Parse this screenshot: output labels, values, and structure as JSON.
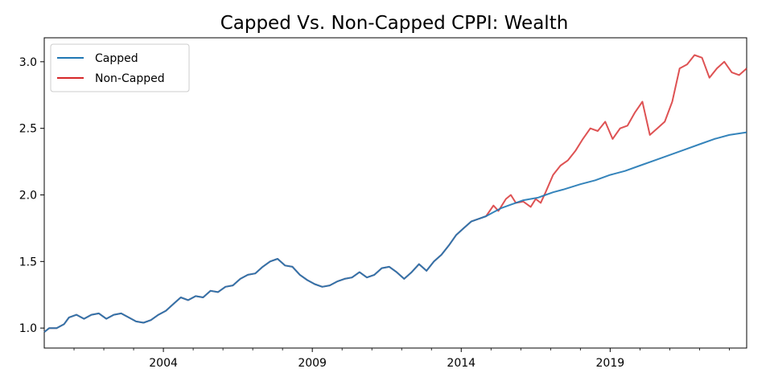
{
  "chart_data": {
    "type": "line",
    "title": "Capped Vs. Non-Capped CPPI: Wealth",
    "xlabel": "",
    "ylabel": "",
    "x_range": [
      "2000-01",
      "2023-08"
    ],
    "ylim": [
      0.85,
      3.18
    ],
    "x_ticks": [
      "2004",
      "2009",
      "2014",
      "2019"
    ],
    "y_ticks": [
      1.0,
      1.5,
      2.0,
      2.5,
      3.0
    ],
    "y_tick_labels": [
      "1.0",
      "1.5",
      "2.0",
      "2.5",
      "3.0"
    ],
    "grid": false,
    "legend": "top-left",
    "series": [
      {
        "name": "Capped",
        "color": "#1f77b4",
        "points": [
          [
            "2000-01",
            0.97
          ],
          [
            "2000-03",
            1.0
          ],
          [
            "2000-06",
            1.0
          ],
          [
            "2000-09",
            1.03
          ],
          [
            "2000-11",
            1.08
          ],
          [
            "2001-02",
            1.1
          ],
          [
            "2001-05",
            1.07
          ],
          [
            "2001-08",
            1.1
          ],
          [
            "2001-11",
            1.11
          ],
          [
            "2002-02",
            1.07
          ],
          [
            "2002-05",
            1.1
          ],
          [
            "2002-08",
            1.11
          ],
          [
            "2002-11",
            1.08
          ],
          [
            "2003-02",
            1.05
          ],
          [
            "2003-05",
            1.04
          ],
          [
            "2003-08",
            1.06
          ],
          [
            "2003-11",
            1.1
          ],
          [
            "2004-02",
            1.13
          ],
          [
            "2004-05",
            1.18
          ],
          [
            "2004-08",
            1.23
          ],
          [
            "2004-11",
            1.21
          ],
          [
            "2005-02",
            1.24
          ],
          [
            "2005-05",
            1.23
          ],
          [
            "2005-08",
            1.28
          ],
          [
            "2005-11",
            1.27
          ],
          [
            "2006-02",
            1.31
          ],
          [
            "2006-05",
            1.32
          ],
          [
            "2006-08",
            1.37
          ],
          [
            "2006-11",
            1.4
          ],
          [
            "2007-02",
            1.41
          ],
          [
            "2007-05",
            1.46
          ],
          [
            "2007-08",
            1.5
          ],
          [
            "2007-11",
            1.52
          ],
          [
            "2008-02",
            1.47
          ],
          [
            "2008-05",
            1.46
          ],
          [
            "2008-08",
            1.4
          ],
          [
            "2008-11",
            1.36
          ],
          [
            "2009-02",
            1.33
          ],
          [
            "2009-05",
            1.31
          ],
          [
            "2009-08",
            1.32
          ],
          [
            "2009-11",
            1.35
          ],
          [
            "2010-02",
            1.37
          ],
          [
            "2010-05",
            1.38
          ],
          [
            "2010-08",
            1.42
          ],
          [
            "2010-11",
            1.38
          ],
          [
            "2011-02",
            1.4
          ],
          [
            "2011-05",
            1.45
          ],
          [
            "2011-08",
            1.46
          ],
          [
            "2011-11",
            1.42
          ],
          [
            "2012-02",
            1.37
          ],
          [
            "2012-05",
            1.42
          ],
          [
            "2012-08",
            1.48
          ],
          [
            "2012-11",
            1.43
          ],
          [
            "2013-02",
            1.5
          ],
          [
            "2013-05",
            1.55
          ],
          [
            "2013-08",
            1.62
          ],
          [
            "2013-11",
            1.7
          ],
          [
            "2014-02",
            1.75
          ],
          [
            "2014-05",
            1.8
          ],
          [
            "2014-08",
            1.82
          ],
          [
            "2014-11",
            1.84
          ],
          [
            "2015-02",
            1.87
          ],
          [
            "2015-05",
            1.9
          ],
          [
            "2015-08",
            1.92
          ],
          [
            "2015-11",
            1.94
          ],
          [
            "2016-02",
            1.96
          ],
          [
            "2016-05",
            1.97
          ],
          [
            "2016-08",
            1.98
          ],
          [
            "2016-11",
            2.0
          ],
          [
            "2017-02",
            2.02
          ],
          [
            "2017-06",
            2.04
          ],
          [
            "2018-01",
            2.08
          ],
          [
            "2018-07",
            2.11
          ],
          [
            "2019-01",
            2.15
          ],
          [
            "2019-07",
            2.18
          ],
          [
            "2020-01",
            2.22
          ],
          [
            "2020-07",
            2.26
          ],
          [
            "2021-01",
            2.3
          ],
          [
            "2021-07",
            2.34
          ],
          [
            "2022-01",
            2.38
          ],
          [
            "2022-07",
            2.42
          ],
          [
            "2023-01",
            2.45
          ],
          [
            "2023-08",
            2.47
          ]
        ]
      },
      {
        "name": "Non-Capped",
        "color": "#d62728",
        "points": [
          [
            "2000-01",
            0.97
          ],
          [
            "2000-03",
            1.0
          ],
          [
            "2000-06",
            1.0
          ],
          [
            "2000-09",
            1.03
          ],
          [
            "2000-11",
            1.08
          ],
          [
            "2001-02",
            1.1
          ],
          [
            "2001-05",
            1.07
          ],
          [
            "2001-08",
            1.1
          ],
          [
            "2001-11",
            1.11
          ],
          [
            "2002-02",
            1.07
          ],
          [
            "2002-05",
            1.1
          ],
          [
            "2002-08",
            1.11
          ],
          [
            "2002-11",
            1.08
          ],
          [
            "2003-02",
            1.05
          ],
          [
            "2003-05",
            1.04
          ],
          [
            "2003-08",
            1.06
          ],
          [
            "2003-11",
            1.1
          ],
          [
            "2004-02",
            1.13
          ],
          [
            "2004-05",
            1.18
          ],
          [
            "2004-08",
            1.23
          ],
          [
            "2004-11",
            1.21
          ],
          [
            "2005-02",
            1.24
          ],
          [
            "2005-05",
            1.23
          ],
          [
            "2005-08",
            1.28
          ],
          [
            "2005-11",
            1.27
          ],
          [
            "2006-02",
            1.31
          ],
          [
            "2006-05",
            1.32
          ],
          [
            "2006-08",
            1.37
          ],
          [
            "2006-11",
            1.4
          ],
          [
            "2007-02",
            1.41
          ],
          [
            "2007-05",
            1.46
          ],
          [
            "2007-08",
            1.5
          ],
          [
            "2007-11",
            1.52
          ],
          [
            "2008-02",
            1.47
          ],
          [
            "2008-05",
            1.46
          ],
          [
            "2008-08",
            1.4
          ],
          [
            "2008-11",
            1.36
          ],
          [
            "2009-02",
            1.33
          ],
          [
            "2009-05",
            1.31
          ],
          [
            "2009-08",
            1.32
          ],
          [
            "2009-11",
            1.35
          ],
          [
            "2010-02",
            1.37
          ],
          [
            "2010-05",
            1.38
          ],
          [
            "2010-08",
            1.42
          ],
          [
            "2010-11",
            1.38
          ],
          [
            "2011-02",
            1.4
          ],
          [
            "2011-05",
            1.45
          ],
          [
            "2011-08",
            1.46
          ],
          [
            "2011-11",
            1.42
          ],
          [
            "2012-02",
            1.37
          ],
          [
            "2012-05",
            1.42
          ],
          [
            "2012-08",
            1.48
          ],
          [
            "2012-11",
            1.43
          ],
          [
            "2013-02",
            1.5
          ],
          [
            "2013-05",
            1.55
          ],
          [
            "2013-08",
            1.62
          ],
          [
            "2013-11",
            1.7
          ],
          [
            "2014-02",
            1.75
          ],
          [
            "2014-05",
            1.8
          ],
          [
            "2014-08",
            1.82
          ],
          [
            "2014-11",
            1.84
          ],
          [
            "2015-02",
            1.92
          ],
          [
            "2015-04",
            1.88
          ],
          [
            "2015-07",
            1.97
          ],
          [
            "2015-09",
            2.0
          ],
          [
            "2015-11",
            1.94
          ],
          [
            "2016-02",
            1.95
          ],
          [
            "2016-05",
            1.91
          ],
          [
            "2016-07",
            1.97
          ],
          [
            "2016-09",
            1.94
          ],
          [
            "2016-11",
            2.02
          ],
          [
            "2017-02",
            2.15
          ],
          [
            "2017-05",
            2.22
          ],
          [
            "2017-08",
            2.26
          ],
          [
            "2017-11",
            2.33
          ],
          [
            "2018-02",
            2.42
          ],
          [
            "2018-05",
            2.5
          ],
          [
            "2018-08",
            2.48
          ],
          [
            "2018-11",
            2.55
          ],
          [
            "2019-02",
            2.42
          ],
          [
            "2019-05",
            2.5
          ],
          [
            "2019-08",
            2.52
          ],
          [
            "2019-11",
            2.62
          ],
          [
            "2020-02",
            2.7
          ],
          [
            "2020-05",
            2.45
          ],
          [
            "2020-08",
            2.5
          ],
          [
            "2020-11",
            2.55
          ],
          [
            "2021-02",
            2.7
          ],
          [
            "2021-05",
            2.95
          ],
          [
            "2021-08",
            2.98
          ],
          [
            "2021-11",
            3.05
          ],
          [
            "2022-02",
            3.03
          ],
          [
            "2022-05",
            2.88
          ],
          [
            "2022-08",
            2.95
          ],
          [
            "2022-11",
            3.0
          ],
          [
            "2023-02",
            2.92
          ],
          [
            "2023-05",
            2.9
          ],
          [
            "2023-08",
            2.95
          ]
        ]
      }
    ]
  }
}
